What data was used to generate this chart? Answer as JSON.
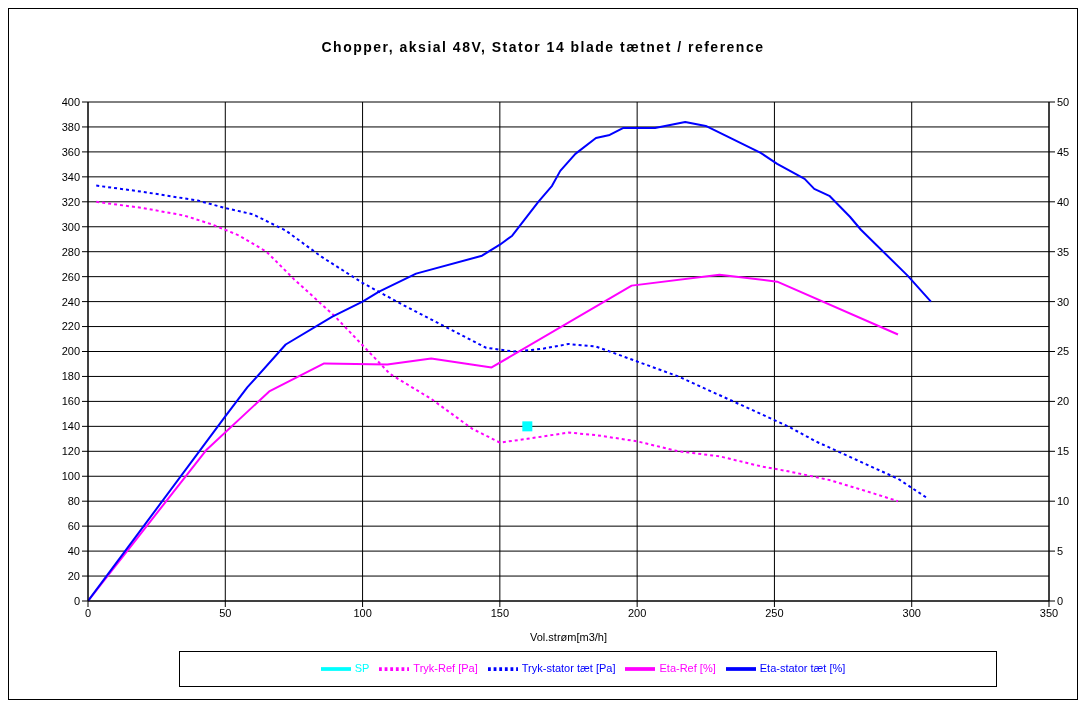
{
  "chart_data": {
    "type": "line",
    "title": "Chopper, aksial 48V, Stator 14 blade tætnet / reference",
    "xlabel": "Vol.strøm[m3/h]",
    "xlim": [
      0,
      350
    ],
    "xticks": [
      0,
      50,
      100,
      150,
      200,
      250,
      300,
      350
    ],
    "ylim": [
      0,
      400
    ],
    "yticks": [
      0,
      20,
      40,
      60,
      80,
      100,
      120,
      140,
      160,
      180,
      200,
      220,
      240,
      260,
      280,
      300,
      320,
      340,
      360,
      380,
      400
    ],
    "y2lim": [
      0,
      50
    ],
    "y2ticks": [
      0,
      5,
      10,
      15,
      20,
      25,
      30,
      35,
      40,
      45,
      50
    ],
    "grid": true,
    "legend": "bottom",
    "series": [
      {
        "name": "SP",
        "type": "scatter",
        "marker": "square",
        "color": "#00ffff",
        "x": [
          160
        ],
        "values": [
          140
        ]
      },
      {
        "name": "Tryk-Ref [Pa]",
        "marker": "none",
        "line_style": "dashed",
        "color": "#ff00ff",
        "x": [
          3,
          20,
          35,
          45,
          55,
          65,
          75,
          90,
          100,
          110,
          125,
          140,
          150,
          160,
          175,
          185,
          200,
          215,
          230,
          245,
          255,
          270,
          285,
          295
        ],
        "values": [
          320,
          315,
          309,
          302,
          293,
          280,
          258,
          228,
          205,
          182,
          162,
          138,
          127,
          130,
          135,
          133,
          128,
          120,
          116,
          108,
          104,
          97,
          87,
          80
        ]
      },
      {
        "name": "Tryk-stator tæt [Pa]",
        "marker": "none",
        "line_style": "dashed",
        "color": "#0000ff",
        "x": [
          3,
          20,
          40,
          50,
          60,
          72,
          85,
          100,
          115,
          130,
          145,
          155,
          165,
          175,
          185,
          200,
          215,
          225,
          240,
          255,
          265,
          280,
          295,
          306
        ],
        "values": [
          333,
          328,
          321,
          315,
          310,
          297,
          276,
          255,
          237,
          220,
          203,
          200,
          202,
          206,
          204,
          192,
          180,
          170,
          155,
          140,
          128,
          113,
          98,
          82
        ]
      },
      {
        "name": "Eta-Ref [%]",
        "axis": "y2",
        "marker": "none",
        "line_style": "solid",
        "color": "#ff00ff",
        "x": [
          0,
          43,
          66,
          86,
          109,
          125,
          147,
          198,
          230,
          251,
          295
        ],
        "values": [
          0,
          15.1,
          21,
          23.8,
          23.7,
          24.3,
          23.4,
          31.6,
          32.7,
          32,
          26.7
        ]
      },
      {
        "name": "Eta-stator tæt [%]",
        "axis": "y2",
        "marker": "none",
        "line_style": "solid",
        "color": "#0000ff",
        "x": [
          0,
          50,
          58,
          72,
          89,
          100,
          106,
          119.5,
          143.5,
          150,
          154.5,
          164,
          169,
          172,
          177.5,
          185,
          190,
          195,
          206.5,
          217.5,
          225,
          245,
          251,
          261,
          264.5,
          270,
          277.5,
          281.5,
          298.5,
          307
        ],
        "values": [
          0,
          18.5,
          21.4,
          25.7,
          28.5,
          30,
          31,
          32.8,
          34.6,
          35.7,
          36.6,
          40,
          41.6,
          43.1,
          44.8,
          46.4,
          46.7,
          47.4,
          47.4,
          48,
          47.6,
          44.9,
          43.8,
          42.3,
          41.3,
          40.6,
          38.5,
          37.2,
          32.6,
          30
        ]
      }
    ]
  }
}
